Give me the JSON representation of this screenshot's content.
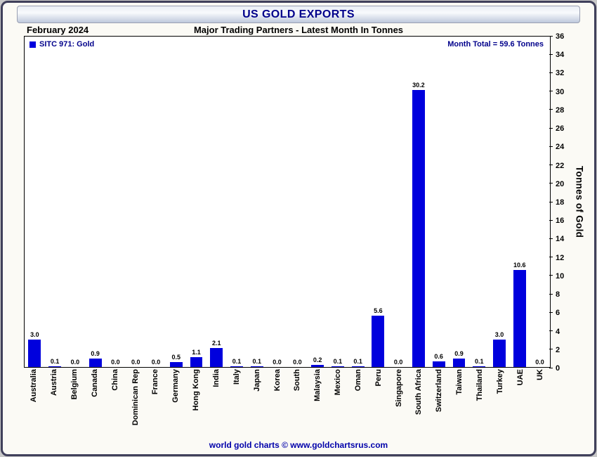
{
  "window": {
    "title": "US GOLD EXPORTS"
  },
  "header": {
    "date_label": "February 2024",
    "subtitle": "Major Trading Partners - Latest Month In Tonnes"
  },
  "legend": {
    "label": "SITC 971: Gold",
    "color": "#0000dd"
  },
  "annotations": {
    "month_total": "Month Total = 59.6 Tonnes"
  },
  "footer": {
    "credit": "world gold charts © www.goldchartsrus.com"
  },
  "chart_data": {
    "type": "bar",
    "title": "US GOLD EXPORTS",
    "subtitle": "Major Trading Partners - Latest Month In Tonnes",
    "xlabel": "",
    "ylabel": "Tonnes of Gold",
    "ylim": [
      0,
      36
    ],
    "ytick_step": 2,
    "grid": false,
    "legend_position": "top-left",
    "legend_entries": [
      "SITC 971: Gold"
    ],
    "bar_color": "#0000dd",
    "month_total_tonnes": 59.6,
    "categories": [
      "Australia",
      "Austria",
      "Belgium",
      "Canada",
      "China",
      "Dominican Rep",
      "France",
      "Germany",
      "Hong Kong",
      "India",
      "Italy",
      "Japan",
      "Korea",
      "South",
      "Malaysia",
      "Mexico",
      "Oman",
      "Peru",
      "Singapore",
      "South Africa",
      "Switzerland",
      "Taiwan",
      "Thailand",
      "Turkey",
      "UAE",
      "UK"
    ],
    "values": [
      3.0,
      0.1,
      0.0,
      0.9,
      0.0,
      0.0,
      0.0,
      0.5,
      1.1,
      2.1,
      0.1,
      0.1,
      0.0,
      0.0,
      0.2,
      0.1,
      0.1,
      5.6,
      0.0,
      30.2,
      0.6,
      0.9,
      0.1,
      3.0,
      10.6,
      0.0
    ]
  }
}
